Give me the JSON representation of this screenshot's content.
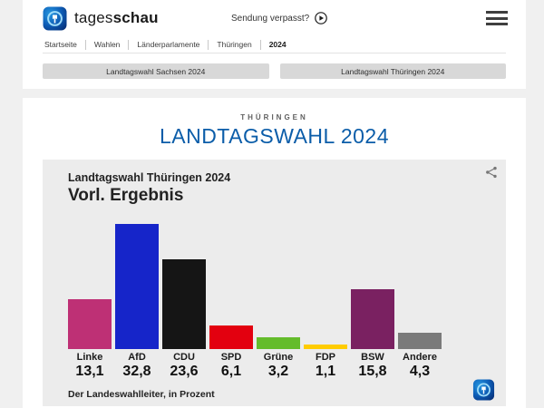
{
  "header": {
    "brand": {
      "name_regular": "tages",
      "name_bold": "schau"
    },
    "sendung_verpasst_label": "Sendung verpasst?",
    "breadcrumb": [
      "Startseite",
      "Wahlen",
      "Länderparlamente",
      "Thüringen",
      "2024"
    ]
  },
  "tabs": [
    {
      "label": "Landtagswahl Sachsen 2024"
    },
    {
      "label": "Landtagswahl Thüringen 2024"
    }
  ],
  "page": {
    "eyebrow": "THÜRINGEN",
    "title": "LANDTAGSWAHL 2024"
  },
  "chart_card": {
    "subtitle": "Landtagswahl Thüringen 2024",
    "title": "Vorl. Ergebnis",
    "source": "Der Landeswahlleiter, in Prozent"
  },
  "chart_data": {
    "type": "bar",
    "title": "Vorl. Ergebnis",
    "subtitle": "Landtagswahl Thüringen 2024",
    "categories": [
      "Linke",
      "AfD",
      "CDU",
      "SPD",
      "Grüne",
      "FDP",
      "BSW",
      "Andere"
    ],
    "values": [
      13.1,
      32.8,
      23.6,
      6.1,
      3.2,
      1.1,
      15.8,
      4.3
    ],
    "value_labels": [
      "13,1",
      "32,8",
      "23,6",
      "6,1",
      "3,2",
      "1,1",
      "15,8",
      "4,3"
    ],
    "bar_colors": [
      "#be3075",
      "#1625c9",
      "#151515",
      "#e3000f",
      "#64bc2b",
      "#ffcc00",
      "#7a2161",
      "#7a7a7a"
    ],
    "unit": "Prozent",
    "source": "Der Landeswahlleiter, in Prozent",
    "ylim": [
      0,
      33
    ],
    "grid": false,
    "legend": "none"
  },
  "colors": {
    "page_background": "#f0f0f0",
    "card_background": "#ececec",
    "title_blue": "#0b5da9",
    "tab_background": "#d8d8d8",
    "logo_blue_dark": "#0a3d8f",
    "logo_blue_light": "#1e86d8"
  }
}
